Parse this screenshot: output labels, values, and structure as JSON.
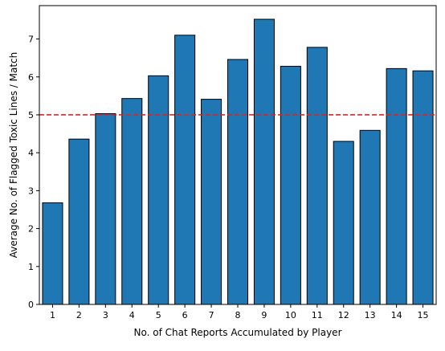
{
  "chart_data": {
    "type": "bar",
    "xlabel": "No. of Chat Reports Accumulated by Player",
    "ylabel": "Average No. of Flagged Toxic Lines / Match",
    "categories": [
      "1",
      "2",
      "3",
      "4",
      "5",
      "6",
      "7",
      "8",
      "9",
      "10",
      "11",
      "12",
      "13",
      "14",
      "15"
    ],
    "values": [
      2.68,
      4.36,
      5.03,
      5.43,
      6.03,
      7.1,
      5.41,
      6.46,
      7.52,
      6.28,
      6.78,
      4.3,
      4.59,
      6.22,
      6.16
    ],
    "ylim": [
      0,
      7.88
    ],
    "yticks": [
      0,
      1,
      2,
      3,
      4,
      5,
      6,
      7
    ],
    "reference_line": {
      "y": 5,
      "style": "dashed",
      "color": "#d62728"
    },
    "bar_color": "#1f77b4",
    "bar_edge_color": "#000000",
    "grid": false,
    "legend": "none"
  }
}
